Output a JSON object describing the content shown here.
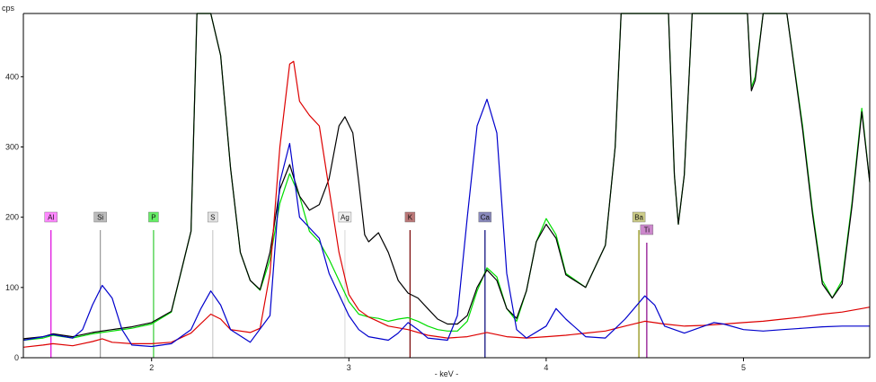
{
  "chart_data": {
    "type": "line",
    "title": "",
    "xlabel": "- keV -",
    "ylabel": "cps",
    "xlim": [
      1.35,
      5.64
    ],
    "ylim": [
      0,
      490
    ],
    "grid": false,
    "x_ticks": [
      2,
      3,
      4,
      5
    ],
    "y_ticks": [
      0,
      100,
      200,
      300,
      400
    ],
    "series": [
      {
        "color": "#00dd00",
        "points": [
          [
            1.35,
            25
          ],
          [
            1.45,
            28
          ],
          [
            1.5,
            32
          ],
          [
            1.6,
            28
          ],
          [
            1.7,
            34
          ],
          [
            1.8,
            38
          ],
          [
            1.9,
            42
          ],
          [
            2.0,
            48
          ],
          [
            2.1,
            65
          ],
          [
            2.2,
            180
          ],
          [
            2.23,
            490
          ],
          [
            2.3,
            490
          ],
          [
            2.35,
            430
          ],
          [
            2.4,
            270
          ],
          [
            2.45,
            150
          ],
          [
            2.5,
            110
          ],
          [
            2.55,
            96
          ],
          [
            2.6,
            140
          ],
          [
            2.65,
            220
          ],
          [
            2.7,
            262
          ],
          [
            2.75,
            230
          ],
          [
            2.8,
            180
          ],
          [
            2.85,
            165
          ],
          [
            2.9,
            140
          ],
          [
            2.95,
            110
          ],
          [
            3.0,
            80
          ],
          [
            3.05,
            62
          ],
          [
            3.1,
            58
          ],
          [
            3.15,
            56
          ],
          [
            3.2,
            52
          ],
          [
            3.25,
            55
          ],
          [
            3.3,
            57
          ],
          [
            3.35,
            52
          ],
          [
            3.4,
            45
          ],
          [
            3.45,
            40
          ],
          [
            3.5,
            38
          ],
          [
            3.55,
            38
          ],
          [
            3.6,
            52
          ],
          [
            3.65,
            95
          ],
          [
            3.7,
            128
          ],
          [
            3.75,
            115
          ],
          [
            3.8,
            70
          ],
          [
            3.85,
            52
          ],
          [
            3.9,
            95
          ],
          [
            3.95,
            165
          ],
          [
            4.0,
            198
          ],
          [
            4.05,
            175
          ],
          [
            4.1,
            120
          ],
          [
            4.2,
            100
          ],
          [
            4.3,
            160
          ],
          [
            4.35,
            300
          ],
          [
            4.38,
            490
          ],
          [
            4.62,
            490
          ],
          [
            4.65,
            260
          ],
          [
            4.67,
            190
          ],
          [
            4.7,
            260
          ],
          [
            4.74,
            490
          ],
          [
            5.02,
            490
          ],
          [
            5.04,
            385
          ],
          [
            5.06,
            400
          ],
          [
            5.1,
            490
          ],
          [
            5.22,
            490
          ],
          [
            5.3,
            330
          ],
          [
            5.35,
            210
          ],
          [
            5.4,
            110
          ],
          [
            5.45,
            85
          ],
          [
            5.5,
            110
          ],
          [
            5.55,
            220
          ],
          [
            5.6,
            355
          ],
          [
            5.64,
            250
          ]
        ]
      },
      {
        "color": "#000000",
        "points": [
          [
            1.35,
            27
          ],
          [
            1.45,
            30
          ],
          [
            1.5,
            34
          ],
          [
            1.6,
            30
          ],
          [
            1.7,
            36
          ],
          [
            1.8,
            40
          ],
          [
            1.9,
            44
          ],
          [
            2.0,
            50
          ],
          [
            2.1,
            66
          ],
          [
            2.2,
            180
          ],
          [
            2.23,
            490
          ],
          [
            2.3,
            490
          ],
          [
            2.35,
            430
          ],
          [
            2.4,
            270
          ],
          [
            2.45,
            150
          ],
          [
            2.5,
            110
          ],
          [
            2.55,
            97
          ],
          [
            2.6,
            150
          ],
          [
            2.65,
            240
          ],
          [
            2.7,
            275
          ],
          [
            2.75,
            230
          ],
          [
            2.8,
            210
          ],
          [
            2.85,
            218
          ],
          [
            2.9,
            255
          ],
          [
            2.95,
            330
          ],
          [
            2.98,
            343
          ],
          [
            3.02,
            320
          ],
          [
            3.05,
            250
          ],
          [
            3.08,
            175
          ],
          [
            3.1,
            165
          ],
          [
            3.15,
            178
          ],
          [
            3.2,
            150
          ],
          [
            3.25,
            110
          ],
          [
            3.3,
            92
          ],
          [
            3.35,
            85
          ],
          [
            3.4,
            70
          ],
          [
            3.45,
            55
          ],
          [
            3.5,
            48
          ],
          [
            3.55,
            48
          ],
          [
            3.6,
            60
          ],
          [
            3.65,
            100
          ],
          [
            3.7,
            125
          ],
          [
            3.75,
            110
          ],
          [
            3.8,
            70
          ],
          [
            3.85,
            56
          ],
          [
            3.9,
            95
          ],
          [
            3.95,
            165
          ],
          [
            4.0,
            190
          ],
          [
            4.05,
            170
          ],
          [
            4.1,
            118
          ],
          [
            4.2,
            100
          ],
          [
            4.3,
            160
          ],
          [
            4.35,
            300
          ],
          [
            4.38,
            490
          ],
          [
            4.62,
            490
          ],
          [
            4.65,
            260
          ],
          [
            4.67,
            190
          ],
          [
            4.7,
            260
          ],
          [
            4.74,
            490
          ],
          [
            5.02,
            490
          ],
          [
            5.04,
            380
          ],
          [
            5.06,
            395
          ],
          [
            5.1,
            490
          ],
          [
            5.22,
            490
          ],
          [
            5.3,
            325
          ],
          [
            5.35,
            205
          ],
          [
            5.4,
            105
          ],
          [
            5.45,
            85
          ],
          [
            5.5,
            105
          ],
          [
            5.55,
            215
          ],
          [
            5.6,
            350
          ],
          [
            5.64,
            250
          ]
        ]
      },
      {
        "color": "#dd0000",
        "points": [
          [
            1.35,
            15
          ],
          [
            1.45,
            18
          ],
          [
            1.5,
            20
          ],
          [
            1.6,
            17
          ],
          [
            1.7,
            23
          ],
          [
            1.75,
            27
          ],
          [
            1.8,
            22
          ],
          [
            1.9,
            20
          ],
          [
            2.0,
            20
          ],
          [
            2.1,
            22
          ],
          [
            2.2,
            35
          ],
          [
            2.3,
            62
          ],
          [
            2.35,
            55
          ],
          [
            2.4,
            40
          ],
          [
            2.5,
            36
          ],
          [
            2.55,
            42
          ],
          [
            2.6,
            120
          ],
          [
            2.65,
            300
          ],
          [
            2.7,
            418
          ],
          [
            2.72,
            422
          ],
          [
            2.75,
            365
          ],
          [
            2.8,
            345
          ],
          [
            2.85,
            330
          ],
          [
            2.9,
            240
          ],
          [
            2.95,
            150
          ],
          [
            3.0,
            90
          ],
          [
            3.05,
            68
          ],
          [
            3.1,
            58
          ],
          [
            3.2,
            45
          ],
          [
            3.3,
            40
          ],
          [
            3.4,
            32
          ],
          [
            3.5,
            28
          ],
          [
            3.6,
            30
          ],
          [
            3.7,
            36
          ],
          [
            3.8,
            30
          ],
          [
            3.9,
            28
          ],
          [
            4.0,
            30
          ],
          [
            4.1,
            32
          ],
          [
            4.2,
            35
          ],
          [
            4.3,
            38
          ],
          [
            4.4,
            45
          ],
          [
            4.5,
            52
          ],
          [
            4.6,
            48
          ],
          [
            4.7,
            45
          ],
          [
            4.8,
            46
          ],
          [
            4.9,
            48
          ],
          [
            5.0,
            50
          ],
          [
            5.1,
            52
          ],
          [
            5.2,
            55
          ],
          [
            5.3,
            58
          ],
          [
            5.4,
            62
          ],
          [
            5.5,
            65
          ],
          [
            5.6,
            70
          ],
          [
            5.64,
            72
          ]
        ]
      },
      {
        "color": "#0000cc",
        "points": [
          [
            1.35,
            25
          ],
          [
            1.45,
            30
          ],
          [
            1.5,
            33
          ],
          [
            1.6,
            28
          ],
          [
            1.65,
            40
          ],
          [
            1.7,
            75
          ],
          [
            1.75,
            103
          ],
          [
            1.8,
            85
          ],
          [
            1.85,
            40
          ],
          [
            1.9,
            18
          ],
          [
            2.0,
            16
          ],
          [
            2.1,
            20
          ],
          [
            2.2,
            40
          ],
          [
            2.25,
            70
          ],
          [
            2.3,
            95
          ],
          [
            2.35,
            75
          ],
          [
            2.4,
            40
          ],
          [
            2.5,
            22
          ],
          [
            2.6,
            60
          ],
          [
            2.65,
            250
          ],
          [
            2.7,
            305
          ],
          [
            2.75,
            200
          ],
          [
            2.8,
            185
          ],
          [
            2.85,
            170
          ],
          [
            2.9,
            120
          ],
          [
            2.95,
            90
          ],
          [
            3.0,
            60
          ],
          [
            3.05,
            40
          ],
          [
            3.1,
            30
          ],
          [
            3.2,
            25
          ],
          [
            3.25,
            35
          ],
          [
            3.3,
            50
          ],
          [
            3.35,
            40
          ],
          [
            3.4,
            28
          ],
          [
            3.5,
            25
          ],
          [
            3.55,
            60
          ],
          [
            3.6,
            200
          ],
          [
            3.65,
            330
          ],
          [
            3.7,
            368
          ],
          [
            3.75,
            320
          ],
          [
            3.8,
            120
          ],
          [
            3.85,
            40
          ],
          [
            3.9,
            28
          ],
          [
            4.0,
            45
          ],
          [
            4.05,
            70
          ],
          [
            4.1,
            55
          ],
          [
            4.2,
            30
          ],
          [
            4.3,
            28
          ],
          [
            4.4,
            55
          ],
          [
            4.5,
            88
          ],
          [
            4.55,
            75
          ],
          [
            4.6,
            45
          ],
          [
            4.7,
            35
          ],
          [
            4.8,
            45
          ],
          [
            4.85,
            50
          ],
          [
            4.9,
            48
          ],
          [
            5.0,
            40
          ],
          [
            5.1,
            38
          ],
          [
            5.2,
            40
          ],
          [
            5.3,
            42
          ],
          [
            5.4,
            44
          ],
          [
            5.5,
            45
          ],
          [
            5.64,
            45
          ]
        ]
      }
    ],
    "element_markers": [
      {
        "label": "Al",
        "x": 1.49,
        "color": "#dd00dd",
        "box": "#ff88ff",
        "tag_y": 256
      },
      {
        "label": "Si",
        "x": 1.74,
        "color": "#999999",
        "box": "#bbbbbb",
        "tag_y": 256
      },
      {
        "label": "P",
        "x": 2.01,
        "color": "#33cc33",
        "box": "#66ee66",
        "tag_y": 256
      },
      {
        "label": "S",
        "x": 2.31,
        "color": "#cccccc",
        "box": "#e2e2e2",
        "tag_y": 256
      },
      {
        "label": "Ag",
        "x": 2.98,
        "color": "#dddddd",
        "box": "#f0f0f0",
        "tag_y": 256
      },
      {
        "label": "K",
        "x": 3.31,
        "color": "#770000",
        "box": "#bb7777",
        "tag_y": 256
      },
      {
        "label": "Ca",
        "x": 3.69,
        "color": "#000077",
        "box": "#8888bb",
        "tag_y": 256
      },
      {
        "label": "Ba",
        "x": 4.47,
        "color": "#888800",
        "box": "#cccc88",
        "tag_y": 256
      },
      {
        "label": "Ti",
        "x": 4.51,
        "color": "#880088",
        "box": "#cc88cc",
        "tag_y": 270
      }
    ]
  }
}
